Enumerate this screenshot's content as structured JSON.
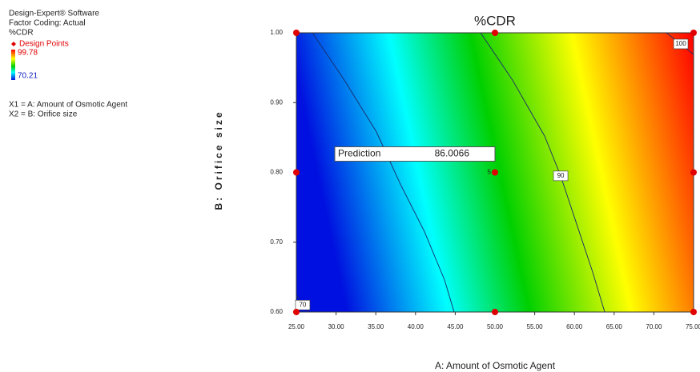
{
  "chart_data": {
    "type": "contour",
    "title": "%CDR",
    "software": "Design-Expert® Software",
    "factor_coding": "Factor Coding: Actual",
    "response": "%CDR",
    "design_points_label": "Design Points",
    "legend_max": 99.78,
    "legend_min": 70.21,
    "factors": [
      "X1 = A: Amount of Osmotic Agent",
      "X2 = B: Orifice size"
    ],
    "x_label": "A: Amount of Osmotic Agent",
    "y_label": "B: Orifice size",
    "xlim": [
      25,
      75
    ],
    "ylim": [
      0.6,
      1.0
    ],
    "xticks": [
      {
        "value": 25,
        "label": "25.00"
      },
      {
        "value": 30,
        "label": "30.00"
      },
      {
        "value": 35,
        "label": "35.00"
      },
      {
        "value": 40,
        "label": "40.00"
      },
      {
        "value": 45,
        "label": "45.00"
      },
      {
        "value": 50,
        "label": "50.00"
      },
      {
        "value": 55,
        "label": "55.00"
      },
      {
        "value": 60,
        "label": "60.00"
      },
      {
        "value": 65,
        "label": "65.00"
      },
      {
        "value": 70,
        "label": "70.00"
      },
      {
        "value": 75,
        "label": "75.00"
      }
    ],
    "yticks": [
      {
        "value": 0.6,
        "label": "0.60"
      },
      {
        "value": 0.7,
        "label": "0.70"
      },
      {
        "value": 0.8,
        "label": "0.80"
      },
      {
        "value": 0.9,
        "label": "0.90"
      },
      {
        "value": 1.0,
        "label": "1.00"
      }
    ],
    "contours": [
      {
        "level": 70,
        "show_label": true,
        "x": [
          25,
          25.8,
          26.6
        ],
        "y": [
          0.625,
          0.61,
          0.6
        ]
      },
      {
        "level": 80,
        "show_label": false,
        "x": [
          27.02,
          31.05,
          35.08,
          38.1,
          41.13,
          43.65,
          44.86
        ],
        "y": [
          1.0,
          0.932,
          0.858,
          0.783,
          0.715,
          0.646,
          0.6
        ]
      },
      {
        "level": 90,
        "show_label": true,
        "x": [
          48.19,
          52.22,
          56.25,
          58.27,
          60.28,
          62.3,
          63.81
        ],
        "y": [
          1.0,
          0.932,
          0.852,
          0.795,
          0.726,
          0.657,
          0.6
        ]
      },
      {
        "level": 100,
        "show_label": true,
        "x": [
          71.57,
          73.39,
          75
        ],
        "y": [
          1.0,
          0.984,
          0.969
        ]
      }
    ],
    "design_points": {
      "x": [
        25,
        25,
        25,
        50,
        50,
        50,
        75,
        75,
        75
      ],
      "y": [
        0.6,
        0.8,
        1.0,
        0.6,
        0.8,
        1.0,
        0.6,
        0.8,
        1.0
      ],
      "point_labels": [
        null,
        null,
        null,
        null,
        "5",
        null,
        null,
        null,
        null
      ],
      "color": "#e00000"
    },
    "prediction": {
      "label": "Prediction",
      "value": 86.0066
    }
  }
}
